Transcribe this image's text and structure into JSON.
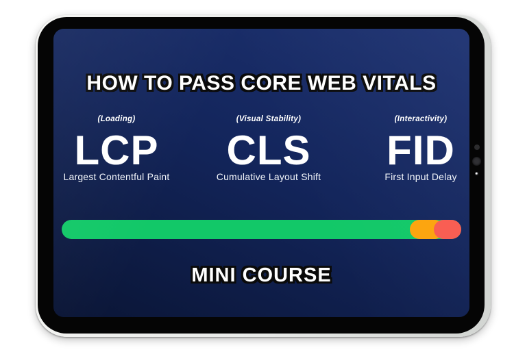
{
  "device": {
    "type": "tablet-mockup",
    "camera_dots": 3
  },
  "screen": {
    "title": "HOW TO PASS CORE WEB VITALS",
    "vitals": [
      {
        "category": "(Loading)",
        "acronym": "LCP",
        "name": "Largest Contentful Paint"
      },
      {
        "category": "(Visual Stability)",
        "acronym": "CLS",
        "name": "Cumulative Layout Shift"
      },
      {
        "category": "(Interactivity)",
        "acronym": "FID",
        "name": "First Input Delay"
      }
    ],
    "progress_bar": {
      "segments": [
        {
          "label": "good",
          "color": "#12C868",
          "left_pct": 0,
          "width_pct": 100
        },
        {
          "label": "needs-improvement",
          "color": "#FCA40D",
          "left_pct": 87.1,
          "width_pct": 8.6
        },
        {
          "label": "poor",
          "color": "#F95B50",
          "left_pct": 93.1,
          "width_pct": 6.9
        }
      ]
    },
    "footer": "MINI COURSE",
    "colors": {
      "screen_gradient_top": "#1E3373",
      "screen_gradient_bottom": "#0A1535",
      "text": "#FFFFFF"
    }
  }
}
